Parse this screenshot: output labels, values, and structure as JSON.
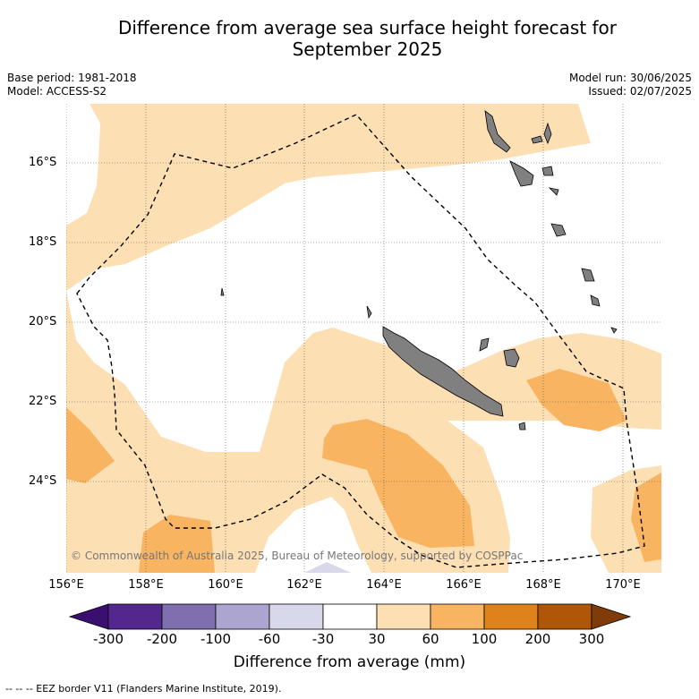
{
  "title": {
    "line1": "Difference from average sea surface height forecast for",
    "line2": "September 2025"
  },
  "meta": {
    "base_period": "Base period: 1981-2018",
    "model": "Model: ACCESS-S2",
    "model_run": "Model run: 30/06/2025",
    "issued": "Issued: 02/07/2025"
  },
  "map": {
    "lat_labels": [
      "16°S",
      "18°S",
      "20°S",
      "22°S",
      "24°S"
    ],
    "lon_labels": [
      "156°E",
      "158°E",
      "160°E",
      "162°E",
      "164°E",
      "166°E",
      "168°E",
      "170°E"
    ],
    "copyright": "© Commonwealth of Australia 2025, Bureau of Meteorology, supported by COSPPac",
    "land_color": "#808080"
  },
  "colorbar": {
    "ticks": [
      "-300",
      "-200",
      "-100",
      "-60",
      "-30",
      "30",
      "60",
      "100",
      "200",
      "300"
    ],
    "colors": [
      "#3b0f70",
      "#54278f",
      "#7f6faf",
      "#aca5cf",
      "#d8d8eb",
      "#ffffff",
      "#fddfb4",
      "#f8b460",
      "#e0821a",
      "#b05608",
      "#7f3b08"
    ],
    "label": "Difference from average (mm)"
  },
  "footer": "-- -- -- EEZ border V11 (Flanders Marine Institute, 2019)."
}
